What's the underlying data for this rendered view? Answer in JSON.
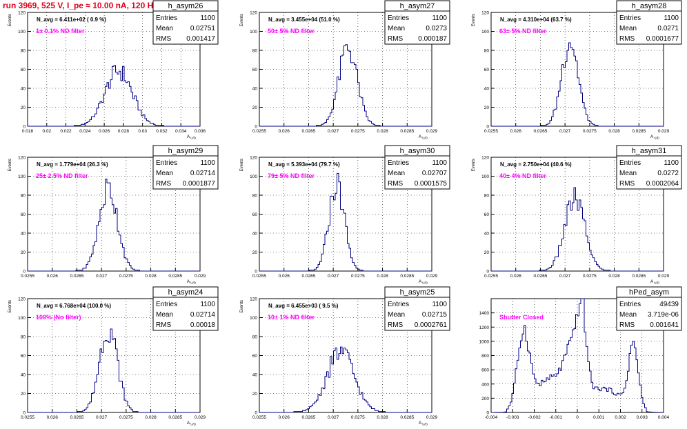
{
  "header": {
    "title": "run 3969,   525 V, I_pe ≈ 10.00 nA, 120 Hz"
  },
  "colors": {
    "title": "#e0001c",
    "annotation": "#ff00ff",
    "histogram": "#000080",
    "axis": "#000000",
    "grid": "#000000"
  },
  "chart_data": [
    {
      "type": "bar",
      "histogram": "h_asym26",
      "navg": "N_avg = 6.411e+02 ( 0.9 %)",
      "filter": "1± 0.1% ND filter",
      "stats": {
        "entries": "1100",
        "mean": "0.02751",
        "rms": "0.001417"
      },
      "xlabel": "A_UD",
      "ylabel": "Events",
      "xlim": [
        0.018,
        0.036
      ],
      "ylim": [
        0,
        120
      ],
      "xticks": [
        "0.018",
        "0.02",
        "0.022",
        "0.024",
        "0.026",
        "0.028",
        "0.03",
        "0.032",
        "0.034",
        "0.036"
      ],
      "yticks": [
        "0",
        "20",
        "40",
        "60",
        "80",
        "100",
        "120"
      ],
      "center": 0.0275,
      "width": 0.00142,
      "peak": 60
    },
    {
      "type": "bar",
      "histogram": "h_asym27",
      "navg": "N_avg = 3.455e+04 (51.0 %)",
      "filter": "50± 5% ND filter",
      "stats": {
        "entries": "1100",
        "mean": "0.0273",
        "rms": "0.000187"
      },
      "xlabel": "A_UD",
      "ylabel": "Events",
      "xlim": [
        0.0255,
        0.029
      ],
      "ylim": [
        0,
        120
      ],
      "xticks": [
        "0.0255",
        "0.026",
        "0.0265",
        "0.027",
        "0.0275",
        "0.028",
        "0.0285",
        "0.029"
      ],
      "yticks": [
        "0",
        "20",
        "40",
        "60",
        "80",
        "100",
        "120"
      ],
      "center": 0.0273,
      "width": 0.000187,
      "peak": 85
    },
    {
      "type": "bar",
      "histogram": "h_asym28",
      "navg": "N_avg = 4.310e+04 (63.7 %)",
      "filter": "63± 5% ND filter",
      "stats": {
        "entries": "1100",
        "mean": "0.0271",
        "rms": "0.0001677"
      },
      "xlabel": "A_UD",
      "ylabel": "Events",
      "xlim": [
        0.0255,
        0.029
      ],
      "ylim": [
        0,
        120
      ],
      "xticks": [
        "0.0255",
        "0.026",
        "0.0265",
        "0.027",
        "0.0275",
        "0.028",
        "0.0285",
        "0.029"
      ],
      "yticks": [
        "0",
        "20",
        "40",
        "60",
        "80",
        "100",
        "120"
      ],
      "center": 0.0271,
      "width": 0.000168,
      "peak": 93
    },
    {
      "type": "bar",
      "histogram": "h_asym29",
      "navg": "N_avg = 1.779e+04 (26.3 %)",
      "filter": "25± 2.5% ND filter",
      "stats": {
        "entries": "1100",
        "mean": "0.02714",
        "rms": "0.0001877"
      },
      "xlabel": "A_UD",
      "ylabel": "Events",
      "xlim": [
        0.0255,
        0.029
      ],
      "ylim": [
        0,
        120
      ],
      "xticks": [
        "0.0255",
        "0.026",
        "0.0265",
        "0.027",
        "0.0275",
        "0.028",
        "0.0285",
        "0.029"
      ],
      "yticks": [
        "0",
        "20",
        "40",
        "60",
        "80",
        "100",
        "120"
      ],
      "center": 0.02714,
      "width": 0.000188,
      "peak": 90
    },
    {
      "type": "bar",
      "histogram": "h_asym30",
      "navg": "N_avg = 5.393e+04 (79.7 %)",
      "filter": "79± 5% ND filter",
      "stats": {
        "entries": "1100",
        "mean": "0.02707",
        "rms": "0.0001575"
      },
      "xlabel": "A_UD",
      "ylabel": "Events",
      "xlim": [
        0.0255,
        0.029
      ],
      "ylim": [
        0,
        120
      ],
      "xticks": [
        "0.0255",
        "0.026",
        "0.0265",
        "0.027",
        "0.0275",
        "0.028",
        "0.0285",
        "0.029"
      ],
      "yticks": [
        "0",
        "20",
        "40",
        "60",
        "80",
        "100",
        "120"
      ],
      "center": 0.02707,
      "width": 0.000158,
      "peak": 94
    },
    {
      "type": "bar",
      "histogram": "h_asym31",
      "navg": "N_avg = 2.750e+04 (40.6 %)",
      "filter": "40± 4% ND filter",
      "stats": {
        "entries": "1100",
        "mean": "0.0272",
        "rms": "0.0002064"
      },
      "xlabel": "A_UD",
      "ylabel": "Events",
      "xlim": [
        0.0255,
        0.029
      ],
      "ylim": [
        0,
        120
      ],
      "xticks": [
        "0.0255",
        "0.026",
        "0.0265",
        "0.027",
        "0.0275",
        "0.028",
        "0.0285",
        "0.029"
      ],
      "yticks": [
        "0",
        "20",
        "40",
        "60",
        "80",
        "100",
        "120"
      ],
      "center": 0.0272,
      "width": 0.000206,
      "peak": 78
    },
    {
      "type": "bar",
      "histogram": "h_asym24",
      "navg": "N_avg = 6.768e+04 (100.0 %)",
      "filter": "100% (No filter)",
      "stats": {
        "entries": "1100",
        "mean": "0.02714",
        "rms": "0.00018"
      },
      "xlabel": "A_UD",
      "ylabel": "Events",
      "xlim": [
        0.0255,
        0.029
      ],
      "ylim": [
        0,
        120
      ],
      "xticks": [
        "0.0255",
        "0.026",
        "0.0265",
        "0.027",
        "0.0275",
        "0.028",
        "0.0285",
        "0.029"
      ],
      "yticks": [
        "0",
        "20",
        "40",
        "60",
        "80",
        "100",
        "120"
      ],
      "center": 0.02714,
      "width": 0.00018,
      "peak": 93
    },
    {
      "type": "bar",
      "histogram": "h_asym25",
      "navg": "N_avg = 6.455e+03 ( 9.5 %)",
      "filter": "10± 1% ND filter",
      "stats": {
        "entries": "1100",
        "mean": "0.02715",
        "rms": "0.0002761"
      },
      "xlabel": "A_UD",
      "ylabel": "Events",
      "xlim": [
        0.0255,
        0.029
      ],
      "ylim": [
        0,
        120
      ],
      "xticks": [
        "0.0255",
        "0.026",
        "0.0265",
        "0.027",
        "0.0275",
        "0.028",
        "0.0285",
        "0.029"
      ],
      "yticks": [
        "0",
        "20",
        "40",
        "60",
        "80",
        "100",
        "120"
      ],
      "center": 0.02715,
      "width": 0.000276,
      "peak": 66
    },
    {
      "type": "bar",
      "histogram": "hPed_asym",
      "navg": "",
      "filter": "Shutter Closed",
      "stats": {
        "entries": "49439",
        "mean": "3.719e-06",
        "rms": "0.001641"
      },
      "xlabel": "",
      "ylabel": "",
      "xlim": [
        -0.004,
        0.004
      ],
      "ylim": [
        0,
        1600
      ],
      "xticks": [
        "-0.004",
        "-0.003",
        "-0.002",
        "-0.001",
        "0",
        "0.001",
        "0.002",
        "0.003",
        "0.004"
      ],
      "yticks": [
        "0",
        "200",
        "400",
        "600",
        "800",
        "1000",
        "1200",
        "1400"
      ],
      "pedestal": true
    }
  ]
}
